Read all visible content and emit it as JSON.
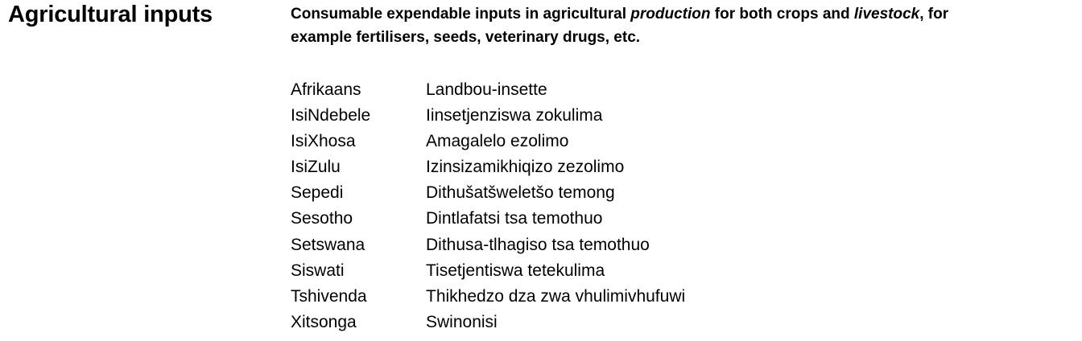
{
  "entry": {
    "term": "Agricultural inputs",
    "definition": {
      "line1_part1": "Consumable expendable inputs in agricultural ",
      "line1_em1": "production",
      "line1_part2": " for both crops and ",
      "line1_em2": "livestock",
      "line1_part3": ", for",
      "line2": "example fertilisers, seeds, veterinary drugs, etc."
    }
  },
  "translations": [
    {
      "language": "Afrikaans",
      "term": "Landbou-insette"
    },
    {
      "language": "IsiNdebele",
      "term": "Iinsetjenziswa zokulima"
    },
    {
      "language": "IsiXhosa",
      "term": "Amagalelo ezolimo"
    },
    {
      "language": "IsiZulu",
      "term": "Izinsizamikhiqizo zezolimo"
    },
    {
      "language": "Sepedi",
      "term": "Dithušatšweletšo temong"
    },
    {
      "language": "Sesotho",
      "term": "Dintlafatsi tsa temothuo"
    },
    {
      "language": "Setswana",
      "term": "Dithusa-tlhagiso tsa temothuo"
    },
    {
      "language": "Siswati",
      "term": "Tisetjentiswa tetekulima"
    },
    {
      "language": "Tshivenda",
      "term": "Thikhedzo dza zwa vhulimivhufuwi"
    },
    {
      "language": "Xitsonga",
      "term": "Swinonisi"
    }
  ]
}
